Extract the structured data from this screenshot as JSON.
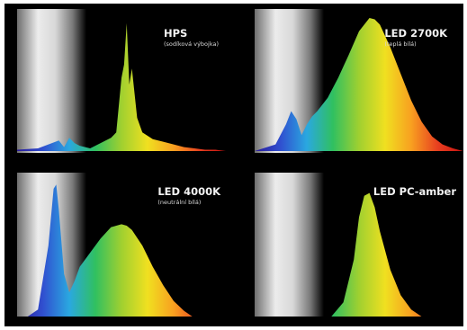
{
  "chart_data": [
    {
      "type": "area",
      "title": "HPS",
      "subtitle": "(sodíková výbojka)",
      "x_range": [
        380,
        780
      ],
      "ylim": [
        0,
        1
      ],
      "gradient_colors": [
        "#2a1a9a",
        "#3050d0",
        "#2aa8e0",
        "#30c060",
        "#a0d030",
        "#f0e020",
        "#f8a020",
        "#e84020",
        "#c81010"
      ],
      "series": [
        {
          "x": [
            380,
            420,
            440,
            460,
            470,
            480,
            490,
            500,
            520,
            540,
            560,
            570,
            580,
            585,
            590,
            595,
            600,
            610,
            620,
            640,
            660,
            680,
            700,
            720,
            740,
            760,
            780
          ],
          "values": [
            0.01,
            0.02,
            0.05,
            0.08,
            0.03,
            0.1,
            0.06,
            0.04,
            0.02,
            0.06,
            0.1,
            0.14,
            0.55,
            0.65,
            0.96,
            0.5,
            0.62,
            0.25,
            0.14,
            0.09,
            0.07,
            0.05,
            0.03,
            0.02,
            0.01,
            0.01,
            0.0
          ]
        }
      ]
    },
    {
      "type": "area",
      "title": "LED 2700K",
      "subtitle": "(teplá bílá)",
      "x_range": [
        380,
        780
      ],
      "ylim": [
        0,
        1
      ],
      "gradient_colors": [
        "#2a1a9a",
        "#3050d0",
        "#2aa8e0",
        "#30c060",
        "#a0d030",
        "#f0e020",
        "#f8a020",
        "#e84020",
        "#c81010"
      ],
      "series": [
        {
          "x": [
            380,
            420,
            440,
            450,
            460,
            470,
            480,
            490,
            500,
            520,
            540,
            560,
            580,
            600,
            610,
            620,
            640,
            660,
            680,
            700,
            720,
            740,
            760,
            780
          ],
          "values": [
            0.0,
            0.05,
            0.2,
            0.3,
            0.24,
            0.12,
            0.2,
            0.26,
            0.3,
            0.4,
            0.55,
            0.72,
            0.9,
            1.0,
            0.99,
            0.95,
            0.78,
            0.58,
            0.38,
            0.22,
            0.11,
            0.05,
            0.02,
            0.0
          ]
        }
      ]
    },
    {
      "type": "area",
      "title": "LED 4000K",
      "subtitle": "(neutrální bílá)",
      "x_range": [
        380,
        780
      ],
      "ylim": [
        0,
        1
      ],
      "gradient_colors": [
        "#2a1a9a",
        "#3050d0",
        "#2aa8e0",
        "#30c060",
        "#a0d030",
        "#f0e020",
        "#f8a020",
        "#e84020",
        "#c81010"
      ],
      "series": [
        {
          "x": [
            380,
            420,
            440,
            450,
            455,
            460,
            470,
            480,
            490,
            500,
            520,
            540,
            560,
            580,
            590,
            600,
            620,
            640,
            660,
            680,
            700,
            720,
            740,
            760,
            780
          ],
          "values": [
            0.0,
            0.1,
            0.55,
            0.95,
            0.98,
            0.8,
            0.35,
            0.22,
            0.3,
            0.4,
            0.5,
            0.6,
            0.68,
            0.7,
            0.69,
            0.66,
            0.55,
            0.4,
            0.27,
            0.16,
            0.09,
            0.04,
            0.02,
            0.01,
            0.0
          ]
        }
      ]
    },
    {
      "type": "area",
      "title": "LED PC-amber",
      "subtitle": "",
      "x_range": [
        380,
        780
      ],
      "ylim": [
        0,
        1
      ],
      "gradient_colors": [
        "#2a1a9a",
        "#3050d0",
        "#2aa8e0",
        "#30c060",
        "#a0d030",
        "#f0e020",
        "#f8a020",
        "#e84020",
        "#c81010"
      ],
      "series": [
        {
          "x": [
            380,
            430,
            450,
            460,
            470,
            490,
            520,
            550,
            570,
            580,
            590,
            600,
            610,
            620,
            640,
            660,
            680,
            700,
            720,
            740,
            780
          ],
          "values": [
            0.0,
            0.02,
            0.03,
            0.03,
            0.01,
            0.0,
            0.02,
            0.15,
            0.45,
            0.75,
            0.9,
            0.92,
            0.82,
            0.65,
            0.38,
            0.2,
            0.1,
            0.05,
            0.02,
            0.01,
            0.0
          ]
        }
      ]
    }
  ]
}
